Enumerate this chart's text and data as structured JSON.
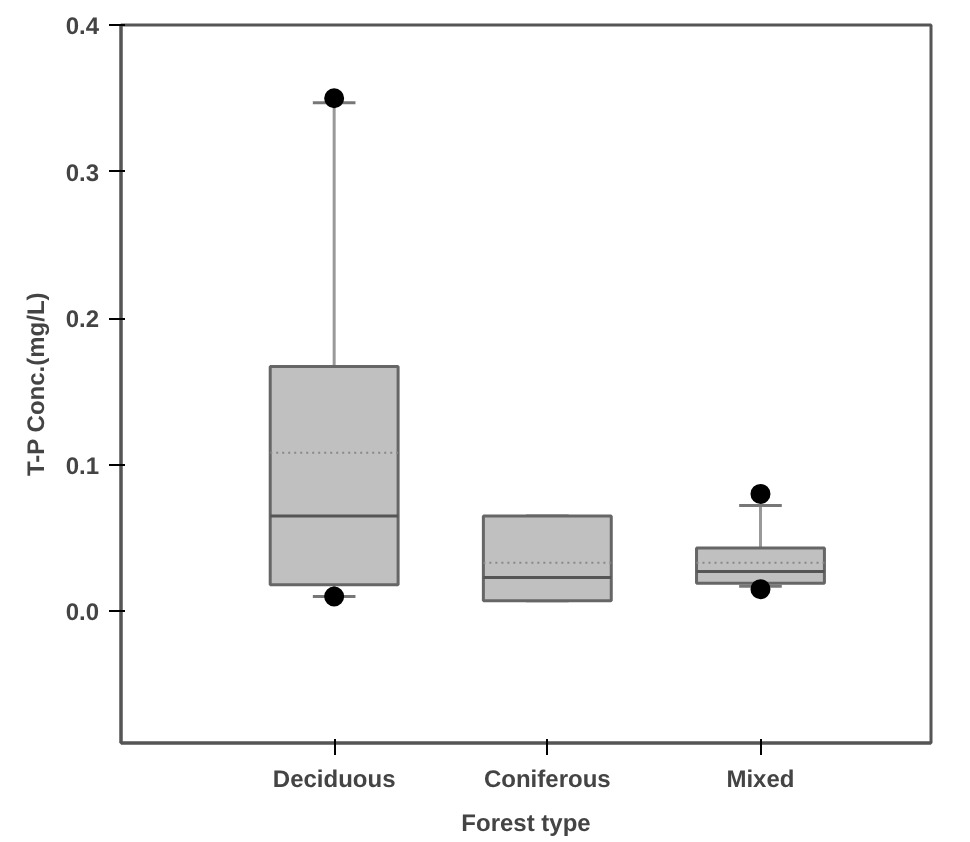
{
  "chart_data": {
    "type": "box",
    "xlabel": "Forest type",
    "ylabel": "T-P Conc.(mg/L)",
    "categories": [
      "Deciduous",
      "Coniferous",
      "Mixed"
    ],
    "boxes": [
      {
        "low": 0.01,
        "q1": 0.018,
        "median": 0.065,
        "q3": 0.167,
        "high": 0.347,
        "mean": 0.108,
        "outliers": [
          0.01,
          0.35
        ]
      },
      {
        "low": 0.007,
        "q1": 0.007,
        "median": 0.023,
        "q3": 0.065,
        "high": 0.065,
        "mean": 0.033
      },
      {
        "low": 0.017,
        "q1": 0.019,
        "median": 0.027,
        "q3": 0.043,
        "high": 0.072,
        "mean": 0.033,
        "outliers": [
          0.015,
          0.08
        ]
      }
    ],
    "color": "#c0c0c0",
    "ylim": [
      -0.09,
      0.4
    ],
    "yticks": [
      {
        "value": 0,
        "label": "0.0"
      },
      0.1,
      0.2,
      0.3,
      0.4
    ],
    "grid": false
  }
}
